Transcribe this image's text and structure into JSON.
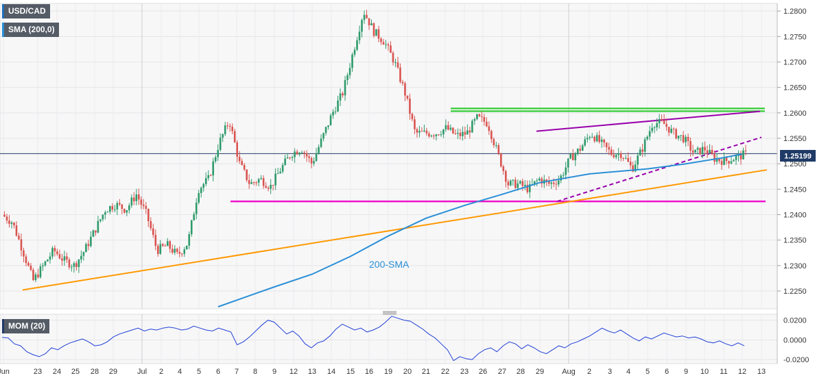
{
  "chart_data": [
    {
      "type": "candlestick",
      "symbol": "USD/CAD",
      "indicator_label": "SMA (200,0)",
      "price_tag": "1.25199",
      "annotation": "200-SMA",
      "y_ticks": [
        "1.2800",
        "1.2750",
        "1.2700",
        "1.2650",
        "1.2600",
        "1.2550",
        "1.2500",
        "1.2450",
        "1.2400",
        "1.2350",
        "1.2300",
        "1.2250"
      ],
      "ylim": [
        1.2215,
        1.2815
      ],
      "x_ticks": [
        "Jun",
        "23",
        "24",
        "25",
        "28",
        "29",
        "Jul",
        "2",
        "4",
        "5",
        "6",
        "7",
        "8",
        "9",
        "12",
        "13",
        "14",
        "15",
        "16",
        "19",
        "20",
        "21",
        "22",
        "23",
        "26",
        "27",
        "28",
        "29",
        "Aug",
        "2",
        "3",
        "4",
        "5",
        "6",
        "9",
        "10",
        "11",
        "12",
        "13"
      ],
      "close_path": [
        1.24,
        1.2385,
        1.233,
        1.227,
        1.23,
        1.233,
        1.231,
        1.23,
        1.233,
        1.237,
        1.241,
        1.242,
        1.241,
        1.244,
        1.24,
        1.233,
        1.234,
        1.232,
        1.2345,
        1.245,
        1.247,
        1.254,
        1.2585,
        1.25,
        1.246,
        1.247,
        1.2455,
        1.249,
        1.252,
        1.253,
        1.25,
        1.255,
        1.26,
        1.264,
        1.272,
        1.28,
        1.276,
        1.274,
        1.27,
        1.264,
        1.256,
        1.256,
        1.256,
        1.257,
        1.2555,
        1.256,
        1.259,
        1.258,
        1.252,
        1.246,
        1.246,
        1.245,
        1.247,
        1.246,
        1.247,
        1.251,
        1.253,
        1.256,
        1.254,
        1.252,
        1.252,
        1.249,
        1.253,
        1.258,
        1.258,
        1.256,
        1.255,
        1.252,
        1.253,
        1.251,
        1.2505,
        1.2512,
        1.2519
      ],
      "sma_200": [
        {
          "label": "6",
          "value": 1.2219
        },
        {
          "label": "9",
          "value": 1.2245
        },
        {
          "label": "13",
          "value": 1.2275
        },
        {
          "label": "16",
          "value": 1.231
        },
        {
          "label": "20",
          "value": 1.2365
        },
        {
          "label": "23",
          "value": 1.2405
        },
        {
          "label": "27",
          "value": 1.2435
        },
        {
          "label": "29",
          "value": 1.2465
        },
        {
          "label": "3",
          "value": 1.2485
        },
        {
          "label": "6",
          "value": 1.2495
        },
        {
          "label": "10",
          "value": 1.251
        },
        {
          "label": "12",
          "value": 1.2519
        }
      ],
      "horizontal_levels": [
        {
          "name": "resistance",
          "value": 1.2606,
          "color": "#33cc33"
        },
        {
          "name": "support",
          "value": 1.2426,
          "color": "#ee11cc"
        },
        {
          "name": "current",
          "value": 1.25199,
          "color": "#1f3a66"
        }
      ],
      "trend_lines": [
        {
          "name": "rising-support",
          "from": [
            1.2252,
            "Jun 22"
          ],
          "to": [
            1.2488,
            "Aug 13"
          ],
          "color": "#ff9900"
        },
        {
          "name": "rising-wedge-top",
          "from": [
            1.2564,
            "Jul 29"
          ],
          "to": [
            1.2603,
            "Aug 12"
          ],
          "color": "#9900aa"
        },
        {
          "name": "dashed-support",
          "from": [
            1.2426,
            "Aug 2"
          ],
          "to": [
            1.2552,
            "Aug 12"
          ],
          "color": "#9900aa"
        }
      ]
    },
    {
      "type": "line",
      "indicator_label": "MOM (20)",
      "y_ticks": [
        "0.0200",
        "0.0000",
        "-0.0200"
      ],
      "ylim": [
        -0.024,
        0.026
      ],
      "values": [
        0.0025,
        0.002,
        -0.004,
        -0.006,
        -0.012,
        -0.015,
        -0.017,
        -0.014,
        -0.008,
        -0.01,
        -0.006,
        -0.003,
        -0.001,
        0.001,
        -0.002,
        -0.006,
        -0.005,
        -0.002,
        0.003,
        0.006,
        0.008,
        0.01,
        0.012,
        0.009,
        0.011,
        0.01,
        0.012,
        0.013,
        0.012,
        0.01,
        0.011,
        0.014,
        0.012,
        0.01,
        0.009,
        0.012,
        0.01,
        0.008,
        -0.005,
        -0.002,
        0.003,
        0.009,
        0.015,
        0.02,
        0.018,
        0.012,
        0.006,
        0.009,
        0.004,
        -0.004,
        -0.008,
        -0.003,
        -0.001,
        0.004,
        0.011,
        0.016,
        0.013,
        0.01,
        0.012,
        0.008,
        0.01,
        0.013,
        0.018,
        0.024,
        0.022,
        0.02,
        0.019,
        0.015,
        0.011,
        0.006,
        0.002,
        -0.004,
        -0.01,
        -0.021,
        -0.017,
        -0.019,
        -0.02,
        -0.014,
        -0.01,
        -0.008,
        -0.012,
        -0.006,
        -0.002,
        -0.004,
        -0.009,
        -0.005,
        -0.008,
        -0.012,
        -0.014,
        -0.01,
        -0.006,
        -0.008,
        -0.004,
        -0.002,
        0.001,
        0.004,
        0.008,
        0.012,
        0.009,
        0.007,
        0.01,
        0.006,
        0.002,
        -0.001,
        0.003,
        0.001,
        0.004,
        0.007,
        0.005,
        0.003,
        0.004,
        0.002,
        0.003,
        0.001,
        -0.002,
        -0.003,
        -0.001,
        -0.004,
        -0.006,
        -0.003,
        -0.006
      ]
    }
  ]
}
